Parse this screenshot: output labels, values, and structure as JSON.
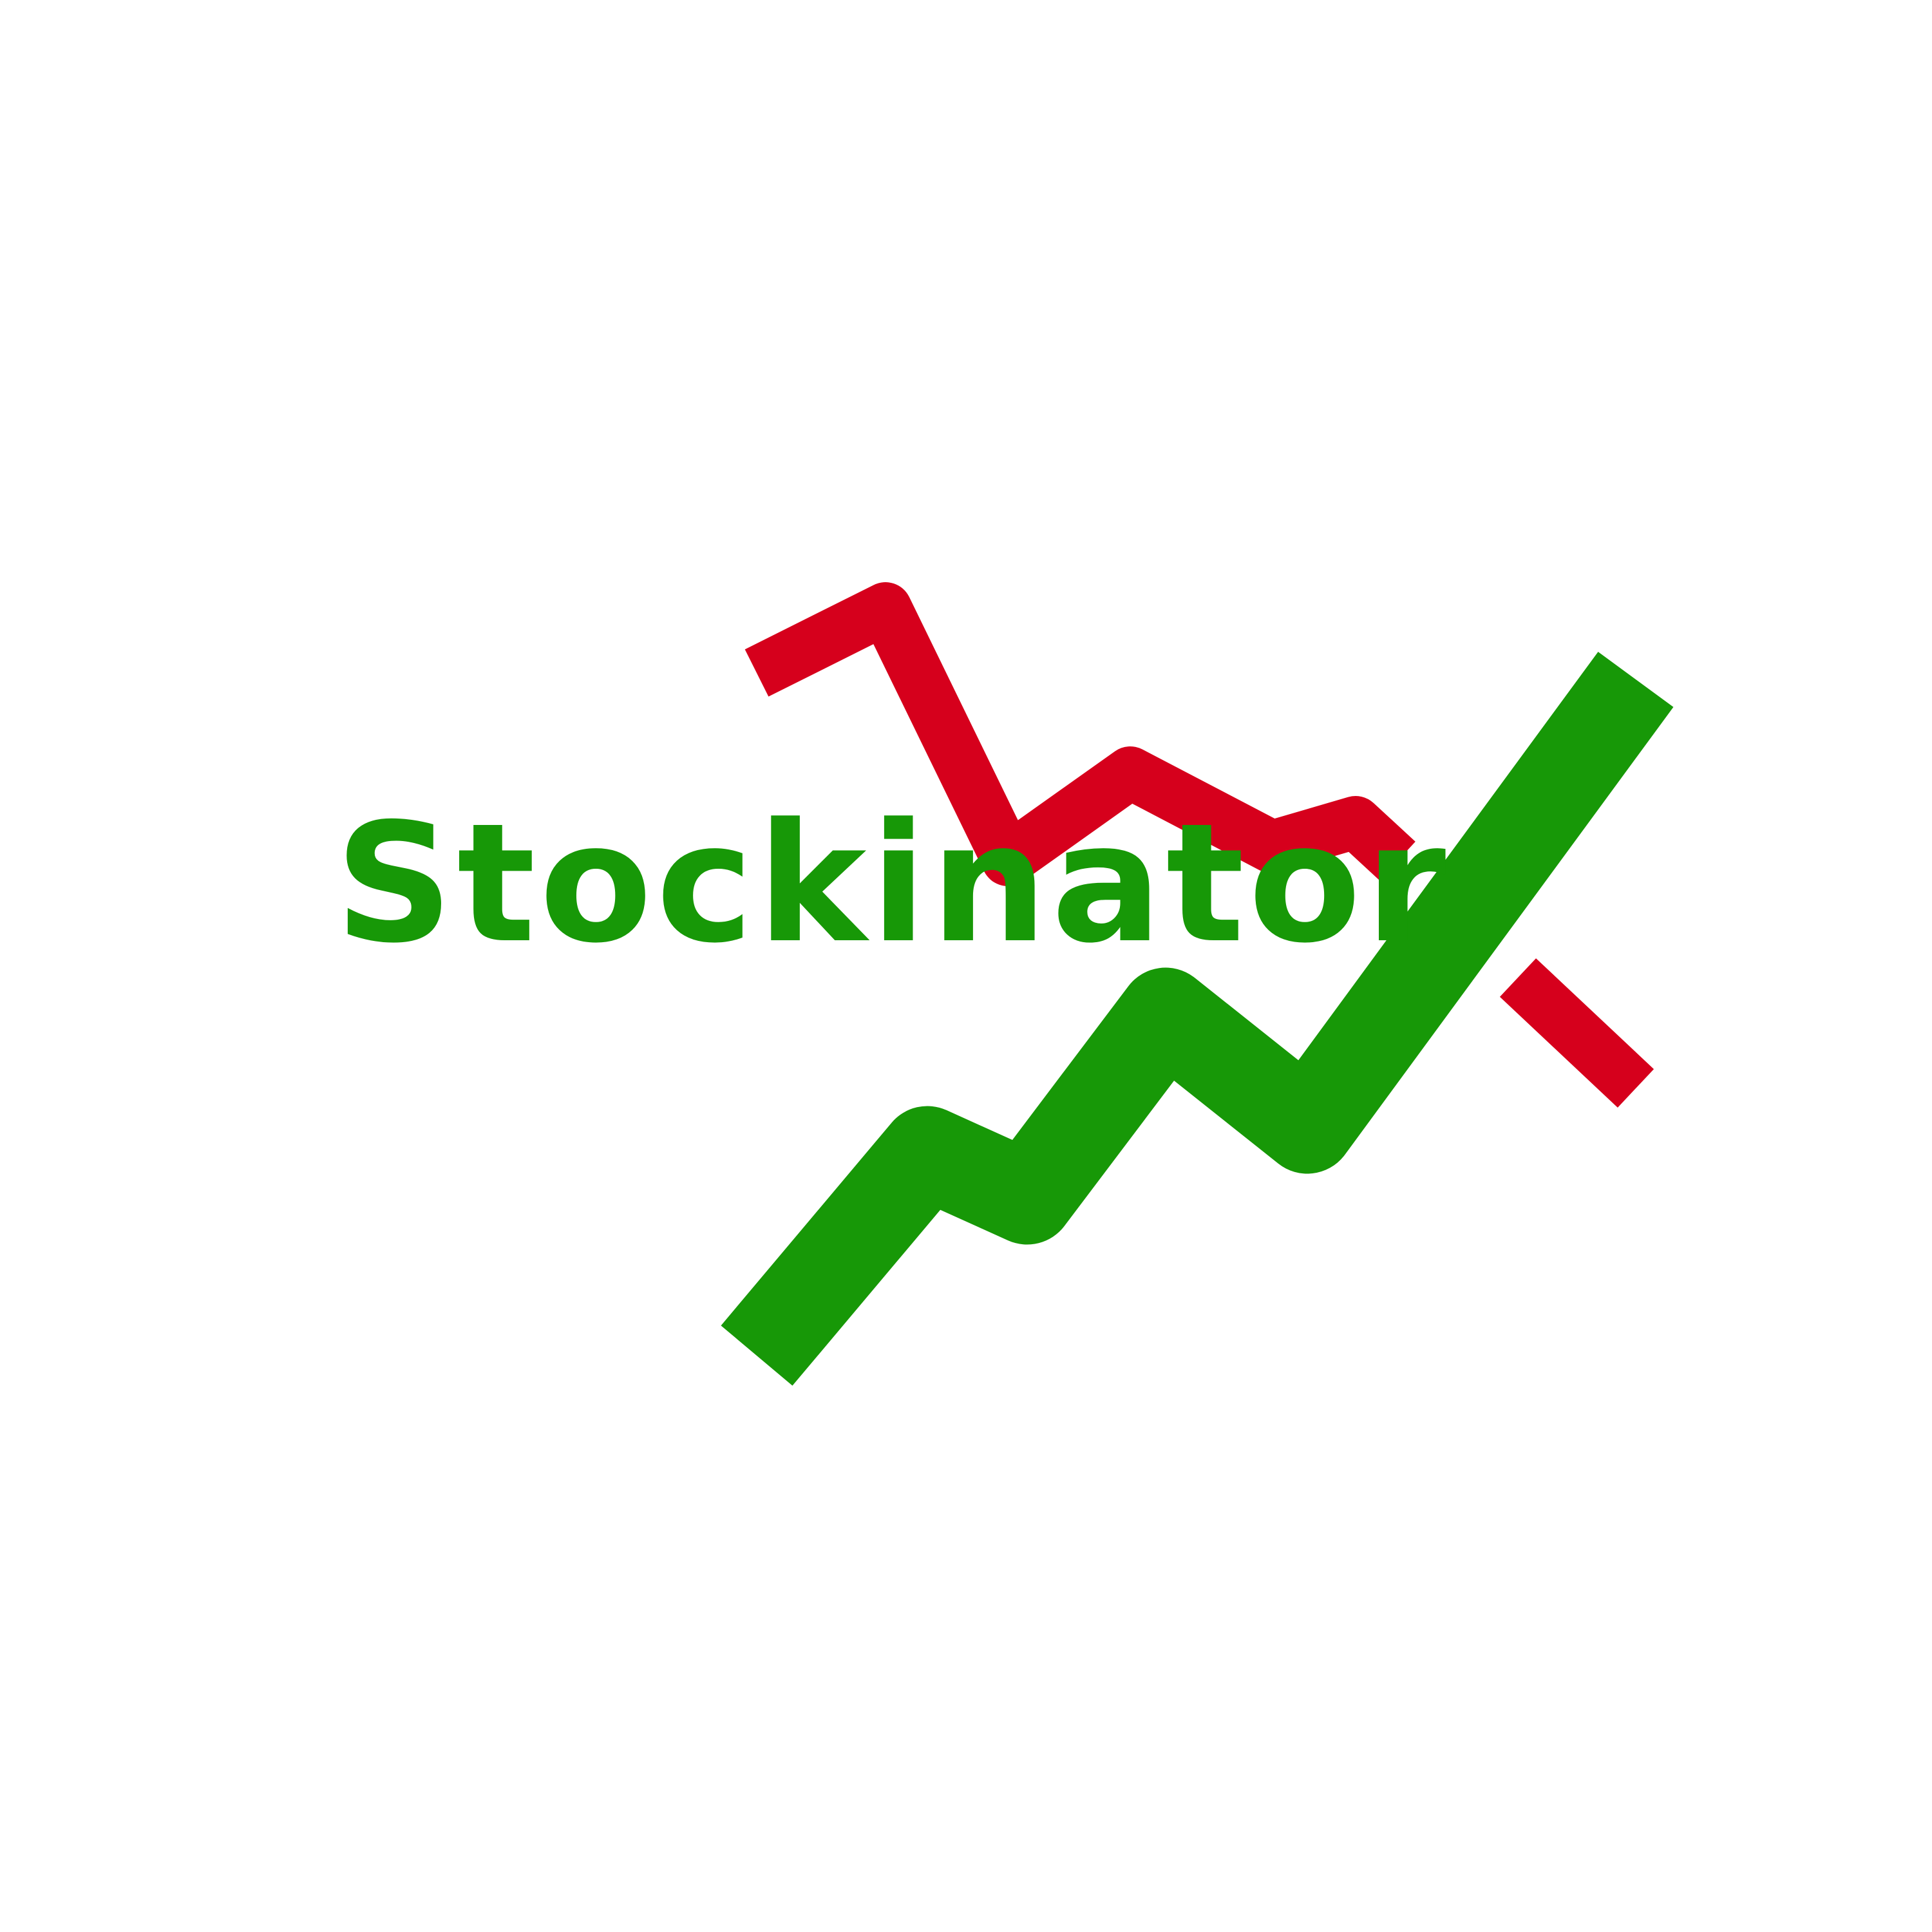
{
  "brand": {
    "name": "Stockinator"
  },
  "colors": {
    "background": "#ffffff",
    "text": "#179807",
    "up_line": "#179807",
    "down_line": "#d6001c"
  },
  "icons": [
    "falling-line-icon",
    "rising-line-icon"
  ]
}
